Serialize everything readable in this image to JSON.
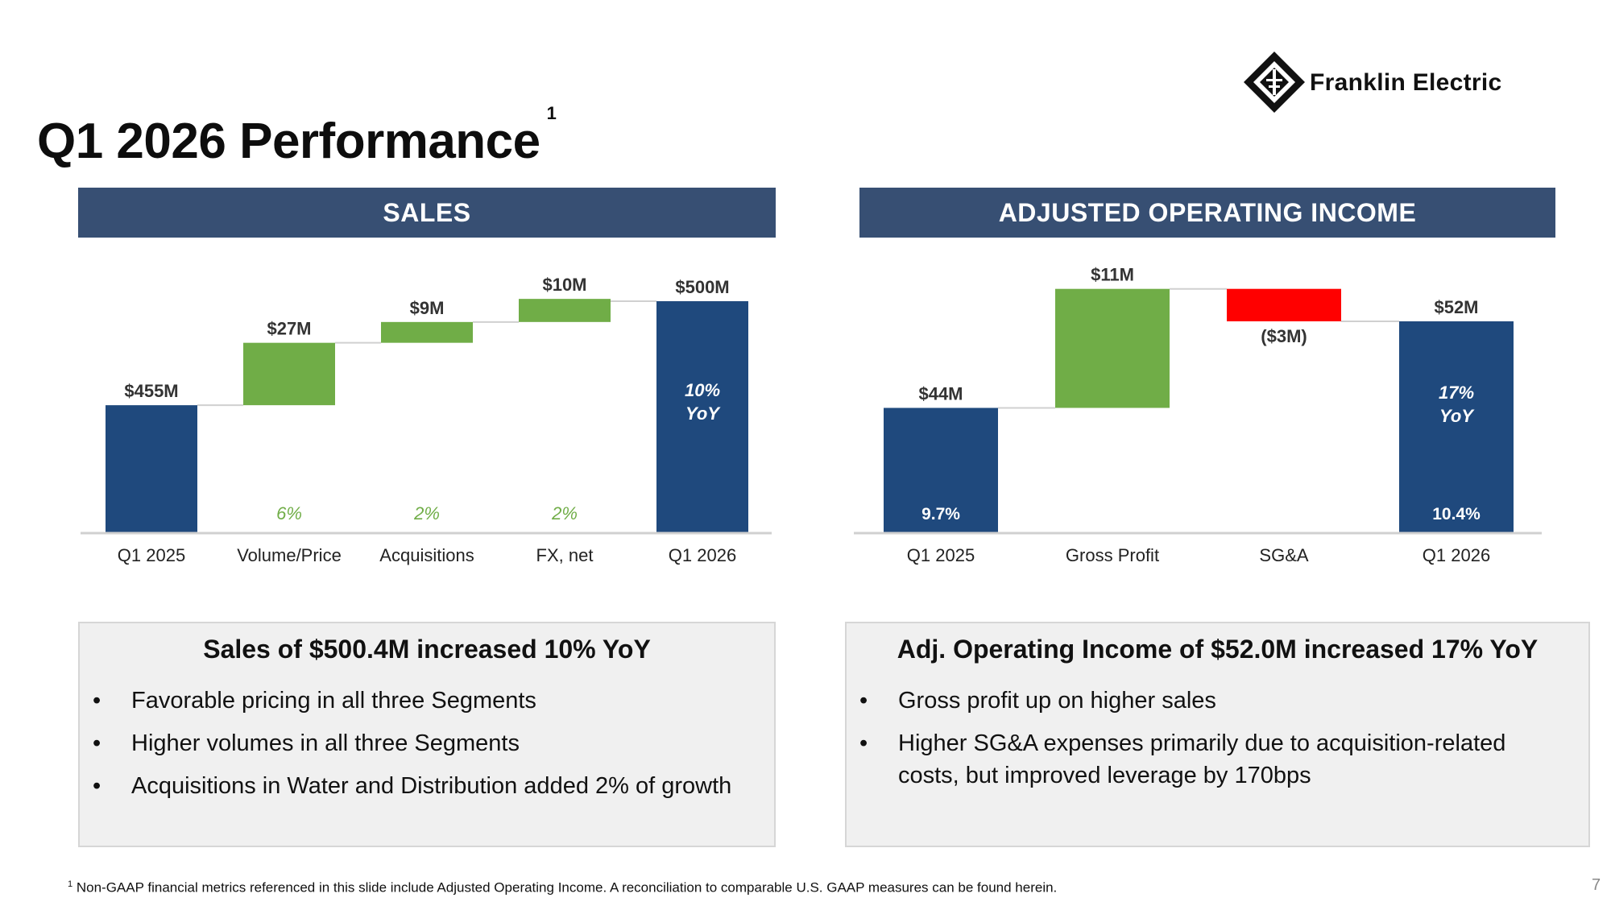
{
  "title": "Q1 2026 Performance",
  "title_footnote_mark": "1",
  "logo": {
    "name": "Franklin Electric"
  },
  "sections": {
    "sales": {
      "header": "SALES"
    },
    "aoi": {
      "header": "ADJUSTED OPERATING INCOME"
    }
  },
  "colors": {
    "navy": "#1f497d",
    "green": "#70ad47",
    "red": "#ff0000",
    "header": "#374f73"
  },
  "chart_data": [
    {
      "type": "bar",
      "subtype": "waterfall",
      "categories": [
        "Q1 2025",
        "Volume/Price",
        "Acquisitions",
        "FX, net",
        "Q1 2026"
      ],
      "values": [
        455,
        27,
        9,
        10,
        500
      ],
      "units": "$M",
      "kinds": [
        "total",
        "increase",
        "increase",
        "increase",
        "total"
      ],
      "data_labels": [
        "$455M",
        "$27M",
        "$9M",
        "$10M",
        "$500M"
      ],
      "pct_labels": [
        "",
        "6%",
        "2%",
        "2%",
        ""
      ],
      "inner_labels": [
        "",
        "",
        "",
        "",
        "10%\nYoY"
      ],
      "title": "",
      "xlabel": "",
      "ylabel": ""
    },
    {
      "type": "bar",
      "subtype": "waterfall",
      "categories": [
        "Q1 2025",
        "Gross Profit",
        "SG&A",
        "Q1 2026"
      ],
      "values": [
        44,
        11,
        -3,
        52
      ],
      "units": "$M",
      "kinds": [
        "total",
        "increase",
        "decrease",
        "total"
      ],
      "data_labels": [
        "$44M",
        "$11M",
        "($3M)",
        "$52M"
      ],
      "margin_labels": [
        "9.7%",
        "",
        "",
        "10.4%"
      ],
      "inner_labels": [
        "",
        "",
        "",
        "17%\nYoY"
      ],
      "title": "",
      "xlabel": "",
      "ylabel": ""
    }
  ],
  "boxes": {
    "sales": {
      "title": "Sales of $500.4M increased 10% YoY",
      "bullets": [
        "Favorable pricing in all three Segments",
        "Higher volumes in all three Segments",
        "Acquisitions in Water and Distribution added 2% of growth"
      ]
    },
    "aoi": {
      "title": "Adj. Operating Income of $52.0M increased 17% YoY",
      "bullets": [
        "Gross profit up on higher sales",
        "Higher SG&A expenses primarily due to acquisition-related costs, but improved leverage by 170bps"
      ]
    }
  },
  "footnote": {
    "mark": "1",
    "text": "Non-GAAP financial metrics referenced in this slide include Adjusted Operating Income. A reconciliation to comparable U.S. GAAP measures can be found herein."
  },
  "page_number": "7"
}
